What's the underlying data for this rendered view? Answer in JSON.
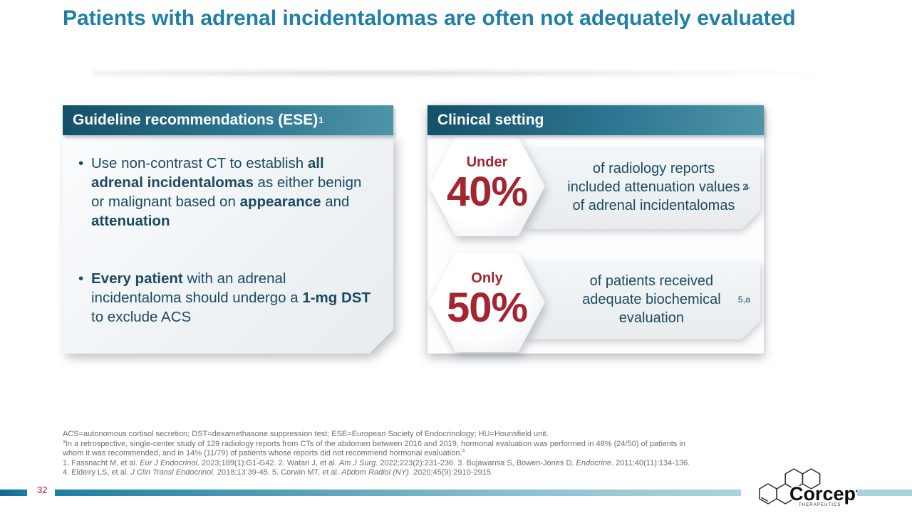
{
  "slide": {
    "title": "Patients with adrenal incidentalomas are often not adequately evaluated",
    "page_number": "32"
  },
  "colors": {
    "title_teal": "#1f7fa6",
    "header_dark": "#14506a",
    "header_light": "#4f95a9",
    "body_text": "#1d4a60",
    "stat_red": "#a32532",
    "footnote_gray": "#6e6e6e",
    "bar_teal": "#1d7fa2",
    "bar_light": "#a9d3dc"
  },
  "left_card": {
    "header": "Guideline recommendations (ESE)",
    "header_sup": "1",
    "bullets": [
      {
        "segments": [
          {
            "t": "Use non-contrast CT to establish "
          },
          {
            "t": "all adrenal incidentalomas",
            "s": "b"
          },
          {
            "t": " as either benign or malignant based on "
          },
          {
            "t": "appearance",
            "s": "b"
          },
          {
            "t": " and "
          },
          {
            "t": "attenuation",
            "s": "b"
          }
        ]
      },
      {
        "segments": [
          {
            "t": "Every patient",
            "s": "b"
          },
          {
            "t": " with an adrenal incidentaloma should undergo a "
          },
          {
            "t": "1-mg DST",
            "s": "b"
          },
          {
            "t": " to exclude ACS"
          }
        ]
      }
    ]
  },
  "right_card": {
    "header": "Clinical setting",
    "stats": [
      {
        "qualifier": "Under",
        "value": "40%",
        "segments": [
          {
            "t": "of radiology reports included attenuation values of adrenal incidentalomas"
          },
          {
            "t": "2-4",
            "s": "sup"
          }
        ]
      },
      {
        "qualifier": "Only",
        "value": "50%",
        "segments": [
          {
            "t": "of patients received adequate biochemical evaluation"
          },
          {
            "t": "5,a",
            "s": "sup"
          }
        ]
      }
    ]
  },
  "footnotes": {
    "lines": [
      {
        "segments": [
          {
            "t": "ACS=autonomous cortisol secretion; DST=dexamethasone suppression test; ESE=European Society of Endocrinology; HU=Hounsfield unit."
          }
        ]
      },
      {
        "segments": [
          {
            "t": "a",
            "s": "sup"
          },
          {
            "t": "In a retrospective, single-center study of 129 radiology reports from CTs of the abdomen between 2016 and 2019, hormonal evaluation was performed in 48% (24/50) of patients in"
          }
        ]
      },
      {
        "segments": [
          {
            "t": "whom it was recommended, and in 14% (11/79) of patients whose reports did not recommend hormonal evaluation."
          },
          {
            "t": "4",
            "s": "sup"
          }
        ]
      },
      {
        "segments": [
          {
            "t": "1. Fassnacht M, et al. "
          },
          {
            "t": "Eur J Endocrinol",
            "s": "i"
          },
          {
            "t": ". 2023;189(1):G1-G42. 2. Watari J, et al. "
          },
          {
            "t": "Am J Surg",
            "s": "i"
          },
          {
            "t": ". 2022;223(2):231-236. 3. Bujawansa S, Bowen-Jones D. "
          },
          {
            "t": "Endocrine",
            "s": "i"
          },
          {
            "t": ". 2011;40(11):134-136."
          }
        ]
      },
      {
        "segments": [
          {
            "t": "4. Eldeiry LS, et al. "
          },
          {
            "t": "J Clin Transl Endocrinol",
            "s": "i"
          },
          {
            "t": ". 2018;13:39-45. 5. Corwin MT, et al. "
          },
          {
            "t": "Abdom Radiol (NY)",
            "s": "i"
          },
          {
            "t": ". 2020;45(9):2910-2915."
          }
        ]
      }
    ]
  },
  "logo": {
    "wordmark": "Corcept",
    "subtext": "THERAPEUTICS"
  }
}
